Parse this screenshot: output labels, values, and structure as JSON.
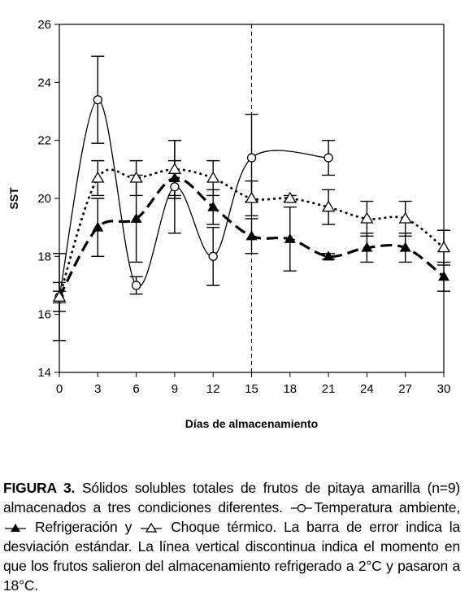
{
  "chart_data": {
    "type": "line",
    "xlabel": "Días de almacenamiento",
    "ylabel": "SST",
    "xlim": [
      0,
      30
    ],
    "ylim": [
      14,
      26
    ],
    "x_ticks": [
      0,
      3,
      6,
      9,
      12,
      15,
      18,
      21,
      24,
      27,
      30
    ],
    "y_ticks": [
      14,
      16,
      18,
      20,
      22,
      24,
      26
    ],
    "grid": false,
    "vline_x": 15,
    "series": [
      {
        "marker": "open-circle",
        "line": "solid",
        "x": [
          0,
          3,
          6,
          9,
          12,
          15,
          21
        ],
        "y": [
          16.6,
          23.4,
          17.0,
          20.4,
          18.0,
          21.4,
          21.4
        ],
        "err": [
          0.5,
          1.5,
          0.3,
          1.6,
          1.0,
          1.5,
          0.6
        ]
      },
      {
        "marker": "filled-triangle",
        "line": "dashed",
        "x": [
          0,
          3,
          6,
          9,
          12,
          15,
          18,
          21,
          24,
          27,
          30
        ],
        "y": [
          16.6,
          19.0,
          19.3,
          20.7,
          19.7,
          18.7,
          18.6,
          18.0,
          18.3,
          18.3,
          17.3
        ],
        "err": [
          1.5,
          1.0,
          1.5,
          0.6,
          0.6,
          0.6,
          1.1,
          0.1,
          0.5,
          0.5,
          0.5
        ]
      },
      {
        "marker": "open-triangle",
        "line": "dotted",
        "x": [
          0,
          3,
          6,
          9,
          12,
          15,
          18,
          21,
          24,
          27,
          30
        ],
        "y": [
          16.6,
          20.7,
          20.7,
          21.0,
          20.7,
          20.0,
          20.0,
          19.7,
          19.3,
          19.3,
          18.3
        ],
        "err": [
          0.2,
          0.6,
          0.6,
          1.0,
          0.6,
          0.6,
          0.1,
          0.6,
          0.6,
          0.6,
          0.6
        ]
      }
    ]
  },
  "caption": {
    "label": "FIGURA 3.",
    "text1": " Sólidos solubles totales de frutos de pitaya amarilla (n=9) almacenados a tres condiciones diferentes. ",
    "text2": "Temperatura ambiente, ",
    "text3": " Refrigeración y ",
    "text4": " Choque térmico. La barra de error indica la desviación estándar. La línea vertical discontinua indica el momento en que los frutos salieron del almacenamiento refrigerado a 2°C y pasaron a 18°C."
  }
}
